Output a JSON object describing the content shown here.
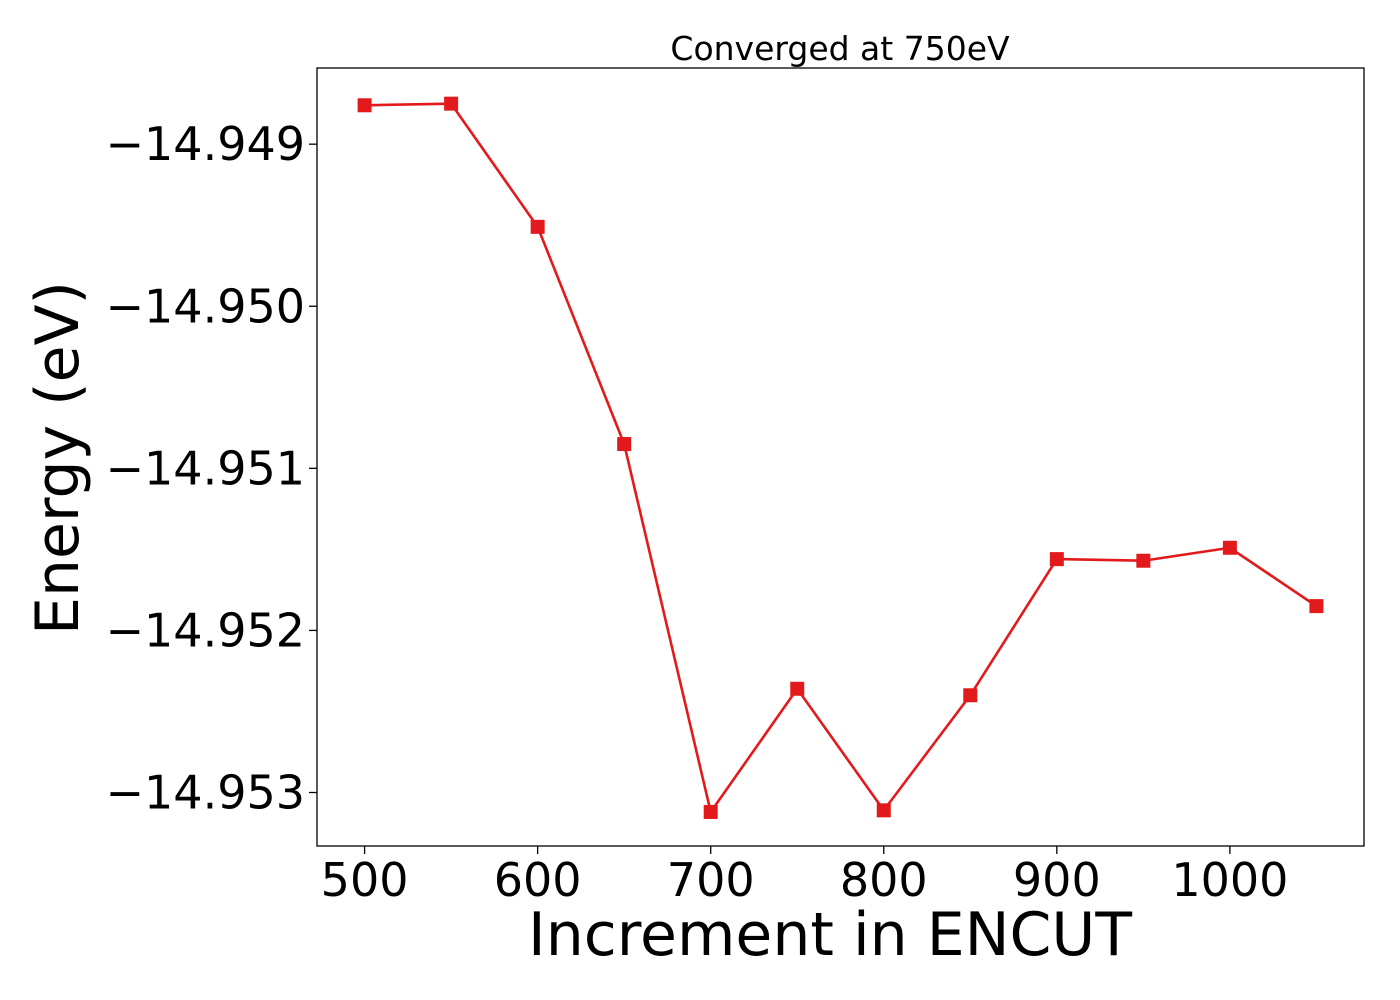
{
  "chart_data": {
    "type": "line",
    "title": "Converged at 750eV",
    "xlabel": "Increment in ENCUT",
    "ylabel": "Energy (eV)",
    "xlim": [
      472.5,
      1077.5
    ],
    "ylim": [
      -14.95333,
      -14.94853
    ],
    "xticks": [
      500,
      600,
      700,
      800,
      900,
      1000
    ],
    "xtick_labels": [
      "500",
      "600",
      "700",
      "800",
      "900",
      "1000"
    ],
    "yticks": [
      -14.949,
      -14.95,
      -14.951,
      -14.952,
      -14.953
    ],
    "ytick_labels": [
      "−14.949",
      "−14.950",
      "−14.951",
      "−14.952",
      "−14.953"
    ],
    "grid": false,
    "series": [
      {
        "color": "#e31a1c",
        "marker": "square",
        "x": [
          500,
          550,
          600,
          650,
          700,
          750,
          800,
          850,
          900,
          950,
          1000,
          1050
        ],
        "y": [
          -14.94876,
          -14.94875,
          -14.94951,
          -14.95085,
          -14.95312,
          -14.95236,
          -14.95311,
          -14.9524,
          -14.95156,
          -14.95157,
          -14.95149,
          -14.95185
        ]
      }
    ]
  }
}
